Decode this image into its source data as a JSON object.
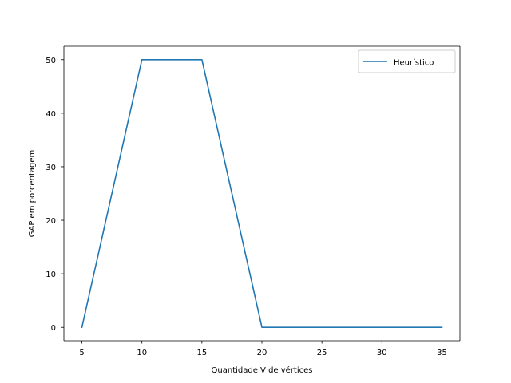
{
  "chart_data": {
    "type": "line",
    "title": "",
    "xlabel": "Quantidade V de vértices",
    "ylabel": "GAP em porcentagem",
    "x": [
      5,
      10,
      15,
      20,
      25,
      30,
      35
    ],
    "series": [
      {
        "name": "Heurístico",
        "values": [
          0,
          50,
          50,
          0,
          0,
          0,
          0
        ],
        "color": "#1f77b4"
      }
    ],
    "xlim": [
      3.5,
      36.5
    ],
    "ylim": [
      -2.5,
      52.5
    ],
    "xticks": [
      5,
      10,
      15,
      20,
      25,
      30,
      35
    ],
    "yticks": [
      0,
      10,
      20,
      30,
      40,
      50
    ],
    "grid": false,
    "legend_position": "top-right"
  }
}
